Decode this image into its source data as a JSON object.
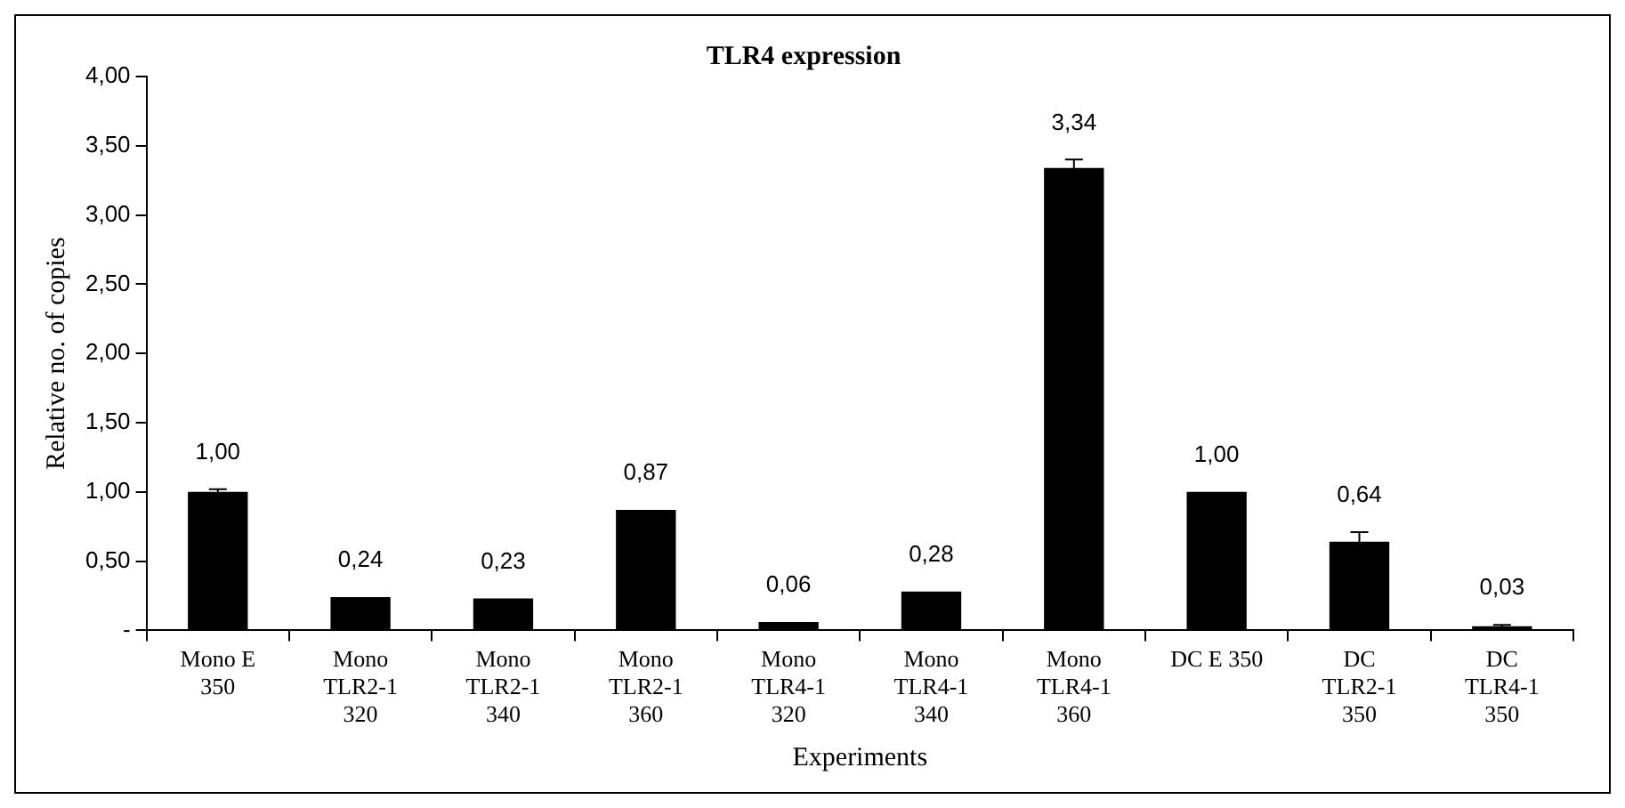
{
  "chart_data": {
    "type": "bar",
    "title": "TLR4 expression",
    "xlabel": "Experiments",
    "ylabel": "Relative no. of copies",
    "categories": [
      "Mono E 350",
      "Mono TLR2-1 320",
      "Mono TLR2-1 340",
      "Mono TLR2-1 360",
      "Mono TLR4-1 320",
      "Mono TLR4-1 340",
      "Mono TLR4-1 360",
      "DC E 350",
      "DC TLR2-1 350",
      "DC TLR4-1 350"
    ],
    "values": [
      1.0,
      0.24,
      0.23,
      0.87,
      0.06,
      0.28,
      3.34,
      1.0,
      0.64,
      0.03
    ],
    "value_labels": [
      "1,00",
      "0,24",
      "0,23",
      "0,87",
      "0,06",
      "0,28",
      "3,34",
      "1,00",
      "0,64",
      "0,03"
    ],
    "errors": [
      0.02,
      null,
      null,
      null,
      null,
      null,
      0.06,
      null,
      0.07,
      0.01
    ],
    "color": "#000000",
    "ylim": [
      0,
      4
    ],
    "yticks": [
      {
        "value": 0,
        "label": "-"
      },
      {
        "value": 0.5,
        "label": "0,50"
      },
      {
        "value": 1,
        "label": "1,00"
      },
      {
        "value": 1.5,
        "label": "1,50"
      },
      {
        "value": 2,
        "label": "2,00"
      },
      {
        "value": 2.5,
        "label": "2,50"
      },
      {
        "value": 3,
        "label": "3,00"
      },
      {
        "value": 3.5,
        "label": "3,50"
      },
      {
        "value": 4,
        "label": "4,00"
      }
    ],
    "grid": false,
    "legend": false
  }
}
